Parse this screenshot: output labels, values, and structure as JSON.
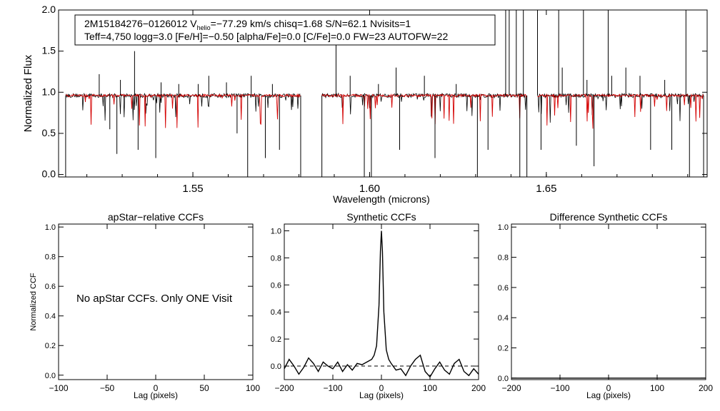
{
  "spectrum": {
    "chart_data": {
      "type": "line",
      "xlabel": "Wavelength (microns)",
      "ylabel": "Normalized Flux",
      "xlim": [
        1.512,
        1.6955
      ],
      "ylim": [
        -0.03,
        2.0
      ],
      "xticks": [
        1.55,
        1.6,
        1.65
      ],
      "xtick_labels": [
        "1.55",
        "1.60",
        "1.65"
      ],
      "yticks": [
        0.0,
        0.5,
        1.0,
        1.5,
        2.0
      ],
      "ytick_labels": [
        "0.0",
        "0.5",
        "1.0",
        "1.5",
        "2.0"
      ],
      "chips": [
        [
          1.514,
          1.5805
        ],
        [
          1.5865,
          1.6445
        ],
        [
          1.6475,
          1.6945
        ]
      ],
      "continuum": 0.96,
      "series": [
        {
          "name": "observed spectrum",
          "color": "#000000"
        },
        {
          "name": "best-fit model",
          "color": "#d40000"
        }
      ],
      "sharp_features_observed": [
        [
          1.514,
          -0.03
        ],
        [
          1.5235,
          1.22
        ],
        [
          1.5265,
          0.55
        ],
        [
          1.5285,
          0.25
        ],
        [
          1.5295,
          1.15
        ],
        [
          1.5335,
          1.5
        ],
        [
          1.5345,
          0.3
        ],
        [
          1.5395,
          0.2
        ],
        [
          1.541,
          1.12
        ],
        [
          1.546,
          1.1
        ],
        [
          1.5515,
          1.1
        ],
        [
          1.5545,
          1.2
        ],
        [
          1.5595,
          1.12
        ],
        [
          1.5625,
          0.5
        ],
        [
          1.5655,
          -0.03
        ],
        [
          1.5665,
          1.2
        ],
        [
          1.5705,
          0.2
        ],
        [
          1.5725,
          1.1
        ],
        [
          1.5745,
          0.3
        ],
        [
          1.5805,
          -0.03
        ],
        [
          1.5865,
          -0.03
        ],
        [
          1.5905,
          1.85
        ],
        [
          1.5945,
          1.2
        ],
        [
          1.5985,
          -0.03
        ],
        [
          1.6005,
          -0.03
        ],
        [
          1.6025,
          1.1
        ],
        [
          1.6075,
          1.3
        ],
        [
          1.6085,
          0.3
        ],
        [
          1.6155,
          1.2
        ],
        [
          1.6185,
          0.2
        ],
        [
          1.6245,
          1.1
        ],
        [
          1.6305,
          -0.03
        ],
        [
          1.6335,
          0.3
        ],
        [
          1.6385,
          2.0
        ],
        [
          1.6395,
          2.0
        ],
        [
          1.6415,
          2.0
        ],
        [
          1.6425,
          -0.03
        ],
        [
          1.6435,
          2.0
        ],
        [
          1.6445,
          -0.03
        ],
        [
          1.6475,
          2.0
        ],
        [
          1.6485,
          0.3
        ],
        [
          1.6535,
          2.0
        ],
        [
          1.6545,
          1.3
        ],
        [
          1.6585,
          0.35
        ],
        [
          1.6605,
          2.0
        ],
        [
          1.6615,
          1.15
        ],
        [
          1.6635,
          0.1
        ],
        [
          1.6675,
          2.0
        ],
        [
          1.6685,
          1.2
        ],
        [
          1.6725,
          1.3
        ],
        [
          1.6765,
          1.2
        ],
        [
          1.6795,
          0.3
        ],
        [
          1.6835,
          1.15
        ],
        [
          1.6855,
          0.3
        ],
        [
          1.6895,
          2.0
        ],
        [
          1.6905,
          -0.03
        ],
        [
          1.6945,
          -0.03
        ]
      ],
      "legend_line1_prefix": "2M15184276−0126012  V",
      "legend_line1_sub": "helio",
      "legend_line1_suffix": "=−77.29 km/s  chisq=1.68  S/N=62.1  Nvisits=1",
      "legend_line2": "Teff=4,750 logg=3.0 [Fe/H]=−0.50 [alpha/Fe]=0.0 [C/Fe]=0.0 FW=23 AUTOFW=22"
    }
  },
  "ccf_panels": [
    {
      "chart_data": {
        "type": "line",
        "title": "apStar−relative CCFs",
        "xlabel": "Lag (pixels)",
        "ylabel": "Normalized CCF",
        "xlim": [
          -100,
          100
        ],
        "ylim": [
          -0.03,
          1.02
        ],
        "xticks": [
          -100,
          -50,
          0,
          50,
          100
        ],
        "xtick_labels": [
          "−100",
          "−50",
          "0",
          "50",
          "100"
        ],
        "yticks": [
          0.0,
          0.2,
          0.4,
          0.6,
          0.8,
          1.0
        ],
        "ytick_labels": [
          "0.0",
          "0.2",
          "0.4",
          "0.6",
          "0.8",
          "1.0"
        ],
        "annotation": "No apStar CCFs.  Only ONE Visit",
        "series": []
      }
    },
    {
      "chart_data": {
        "type": "line",
        "title": "Synthetic CCFs",
        "xlabel": "Lag (pixels)",
        "ylabel": "",
        "xlim": [
          -200,
          200
        ],
        "ylim": [
          -0.1,
          1.05
        ],
        "xticks": [
          -200,
          -100,
          0,
          100,
          200
        ],
        "xtick_labels": [
          "−200",
          "−100",
          "0",
          "100",
          "200"
        ],
        "yticks": [
          0.0,
          0.2,
          0.4,
          0.6,
          0.8,
          1.0
        ],
        "ytick_labels": [
          "0.0",
          "0.2",
          "0.4",
          "0.6",
          "0.8",
          "1.0"
        ],
        "zero_line": true,
        "series": [
          {
            "name": "synthetic CCF",
            "color": "#000000",
            "x": [
              -200,
              -190,
              -180,
              -170,
              -160,
              -150,
              -140,
              -130,
              -120,
              -110,
              -100,
              -90,
              -80,
              -70,
              -60,
              -50,
              -40,
              -30,
              -20,
              -15,
              -10,
              -5,
              -2,
              0,
              2,
              5,
              10,
              15,
              20,
              30,
              40,
              50,
              60,
              70,
              80,
              90,
              100,
              110,
              120,
              130,
              140,
              150,
              160,
              170,
              180,
              190,
              200
            ],
            "y": [
              -0.02,
              0.05,
              0.0,
              -0.06,
              -0.01,
              0.06,
              0.02,
              -0.04,
              0.03,
              0.0,
              -0.02,
              0.03,
              -0.04,
              0.01,
              -0.03,
              0.02,
              0.01,
              0.03,
              0.05,
              0.08,
              0.15,
              0.45,
              0.85,
              1.0,
              0.85,
              0.4,
              0.12,
              0.05,
              0.02,
              -0.03,
              -0.02,
              -0.07,
              0.0,
              0.05,
              0.08,
              -0.04,
              -0.08,
              -0.02,
              0.03,
              -0.03,
              -0.06,
              0.02,
              0.05,
              -0.04,
              -0.07,
              -0.02,
              -0.06
            ]
          }
        ]
      }
    },
    {
      "chart_data": {
        "type": "line",
        "title": "Difference Synthetic CCFs",
        "xlabel": "Lag (pixels)",
        "ylabel": "",
        "xlim": [
          -200,
          200
        ],
        "ylim": [
          -0.01,
          1.02
        ],
        "xticks": [
          -200,
          -100,
          0,
          100,
          200
        ],
        "xtick_labels": [
          "−200",
          "−100",
          "0",
          "100",
          "200"
        ],
        "yticks": [
          0.0,
          0.2,
          0.4,
          0.6,
          0.8,
          1.0
        ],
        "ytick_labels": [
          "0.0",
          "0.2",
          "0.4",
          "0.6",
          "0.8",
          "1.0"
        ],
        "series": [
          {
            "name": "difference CCF",
            "color": "#000000",
            "x": [
              -200,
              200
            ],
            "y": [
              0.0,
              0.0
            ]
          }
        ]
      }
    }
  ]
}
